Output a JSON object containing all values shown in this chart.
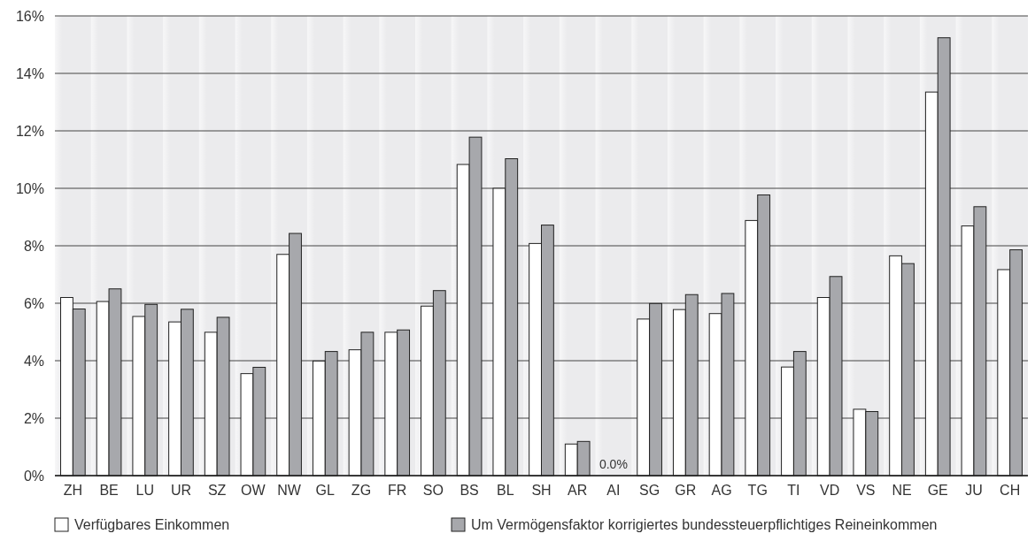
{
  "chart_data": {
    "type": "bar",
    "categories": [
      "ZH",
      "BE",
      "LU",
      "UR",
      "SZ",
      "OW",
      "NW",
      "GL",
      "ZG",
      "FR",
      "SO",
      "BS",
      "BL",
      "SH",
      "AR",
      "AI",
      "SG",
      "GR",
      "AG",
      "TG",
      "TI",
      "VD",
      "VS",
      "NE",
      "GE",
      "JU",
      "CH"
    ],
    "series": [
      {
        "name": "Verfügbares Einkommen",
        "color": "#ffffff",
        "values": [
          6.2,
          6.06,
          5.54,
          5.35,
          4.99,
          3.55,
          7.7,
          3.99,
          4.38,
          4.99,
          5.9,
          10.83,
          10.0,
          8.08,
          1.1,
          0,
          5.45,
          5.78,
          5.64,
          8.88,
          3.78,
          6.2,
          2.31,
          7.65,
          13.35,
          8.69,
          7.17
        ]
      },
      {
        "name": "Um Vermögensfaktor korrigiertes bundessteuerpflichtiges Reineinkommen",
        "color": "#a7a8ac",
        "values": [
          5.8,
          6.5,
          5.96,
          5.79,
          5.51,
          3.77,
          8.43,
          4.32,
          4.99,
          5.07,
          6.44,
          11.78,
          11.03,
          8.72,
          1.19,
          0,
          5.99,
          6.3,
          6.34,
          9.77,
          4.32,
          6.93,
          2.23,
          7.38,
          15.24,
          9.36,
          7.86
        ]
      }
    ],
    "ylim": [
      0,
      16
    ],
    "yticks": [
      {
        "value": 0,
        "label": "0%"
      },
      {
        "value": 2,
        "label": "2%"
      },
      {
        "value": 4,
        "label": "4%"
      },
      {
        "value": 6,
        "label": "6%"
      },
      {
        "value": 8,
        "label": "8%"
      },
      {
        "value": 10,
        "label": "10%"
      },
      {
        "value": 12,
        "label": "12%"
      },
      {
        "value": 14,
        "label": "14%"
      },
      {
        "value": 16,
        "label": "16%"
      }
    ],
    "grid": "y",
    "legend": "bottom",
    "annotations": [
      {
        "text": "0.0%",
        "x": "AI",
        "y": 0
      }
    ]
  }
}
